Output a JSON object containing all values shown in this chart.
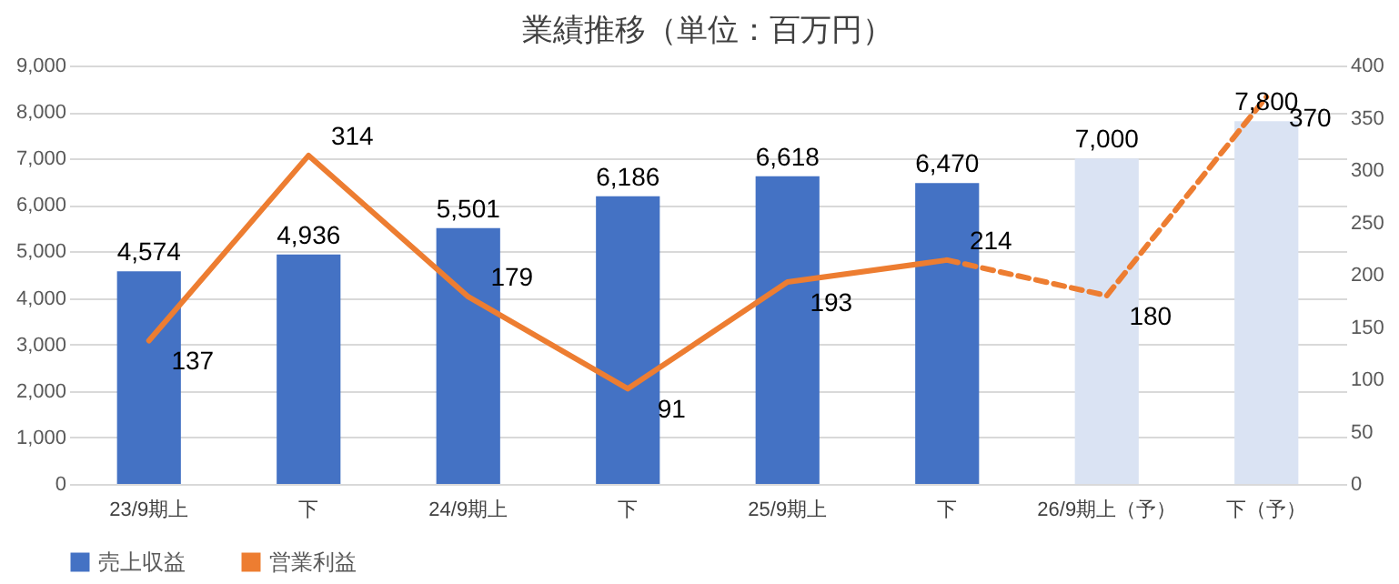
{
  "chart_data": {
    "type": "bar",
    "title": "業績推移（単位：百万円）",
    "categories": [
      "23/9期上",
      "下",
      "24/9期上",
      "下",
      "25/9期上",
      "下",
      "26/9期上（予）",
      "下（予）"
    ],
    "series": [
      {
        "name": "売上収益",
        "color": "#4472c4",
        "colors": [
          "#4472c4",
          "#4472c4",
          "#4472c4",
          "#4472c4",
          "#4472c4",
          "#4472c4",
          "#dae3f3",
          "#dae3f3"
        ],
        "values": [
          4574,
          4936,
          5501,
          6186,
          6618,
          6470,
          7000,
          7800
        ],
        "value_labels": [
          "4,574",
          "4,936",
          "5,501",
          "6,186",
          "6,618",
          "6,470",
          "7,000",
          "7,800"
        ]
      },
      {
        "name": "営業利益",
        "type": "line",
        "axis": "y2",
        "color": "#ed7d31",
        "line_style": "solid",
        "values": [
          137,
          314,
          179,
          91,
          193,
          214,
          null,
          null
        ]
      },
      {
        "type": "line",
        "axis": "y2",
        "color": "#ed7d31",
        "line_style": "dashed",
        "values": [
          null,
          null,
          null,
          null,
          null,
          214,
          180,
          370
        ],
        "value_labels": [
          null,
          null,
          null,
          null,
          null,
          null,
          "180",
          "370"
        ]
      }
    ],
    "ylim": [
      0,
      9000
    ],
    "yticks": [
      0,
      {
        "value": 1000,
        "label": "1,000"
      },
      {
        "value": 2000,
        "label": "2,000"
      },
      {
        "value": 3000,
        "label": "3,000"
      },
      {
        "value": 4000,
        "label": "4,000"
      },
      {
        "value": 5000,
        "label": "5,000"
      },
      {
        "value": 6000,
        "label": "6,000"
      },
      {
        "value": 7000,
        "label": "7,000"
      },
      {
        "value": 8000,
        "label": "8,000"
      },
      {
        "value": 9000,
        "label": "9,000"
      }
    ],
    "y2lim": [
      0,
      400
    ],
    "y2ticks": [
      0,
      50,
      100,
      150,
      200,
      250,
      300,
      350,
      400
    ],
    "grid": "y",
    "legend": "bottom",
    "data_labels": true
  }
}
